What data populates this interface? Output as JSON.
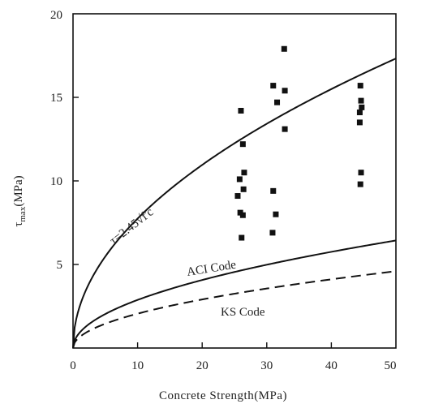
{
  "chart_data": {
    "type": "scatter",
    "title": "",
    "xlabel": "Concrete Strength(MPa)",
    "ylabel_symbol": "τ",
    "ylabel_sub": "max",
    "ylabel_unit": "(MPa)",
    "xlim": [
      0,
      50
    ],
    "ylim": [
      0,
      20
    ],
    "xticks": [
      "0",
      "10",
      "20",
      "30",
      "40",
      "50"
    ],
    "yticks": [
      "5",
      "10",
      "15",
      "20"
    ],
    "grid": false,
    "points": [
      {
        "x": 26.0,
        "y": 14.2
      },
      {
        "x": 25.8,
        "y": 10.1
      },
      {
        "x": 25.5,
        "y": 9.1
      },
      {
        "x": 26.3,
        "y": 12.2
      },
      {
        "x": 26.5,
        "y": 10.5
      },
      {
        "x": 26.4,
        "y": 9.5
      },
      {
        "x": 25.9,
        "y": 8.1
      },
      {
        "x": 26.3,
        "y": 7.95
      },
      {
        "x": 26.1,
        "y": 6.6
      },
      {
        "x": 31.0,
        "y": 15.7
      },
      {
        "x": 31.6,
        "y": 14.7
      },
      {
        "x": 32.7,
        "y": 17.9
      },
      {
        "x": 32.8,
        "y": 15.4
      },
      {
        "x": 32.8,
        "y": 13.1
      },
      {
        "x": 31.0,
        "y": 9.4
      },
      {
        "x": 31.4,
        "y": 8.0
      },
      {
        "x": 30.9,
        "y": 6.9
      },
      {
        "x": 44.5,
        "y": 15.7
      },
      {
        "x": 44.6,
        "y": 14.8
      },
      {
        "x": 44.7,
        "y": 14.4
      },
      {
        "x": 44.4,
        "y": 14.1
      },
      {
        "x": 44.4,
        "y": 13.5
      },
      {
        "x": 44.6,
        "y": 10.5
      },
      {
        "x": 44.5,
        "y": 9.8
      }
    ],
    "curves": [
      {
        "label": "τ=2.45√f'c",
        "coefficient": 2.45,
        "style": "solid"
      },
      {
        "label": "ACI Code",
        "coefficient": 0.91,
        "style": "solid"
      },
      {
        "label": "KS Code",
        "coefficient": 0.65,
        "style": "dashed"
      }
    ]
  }
}
